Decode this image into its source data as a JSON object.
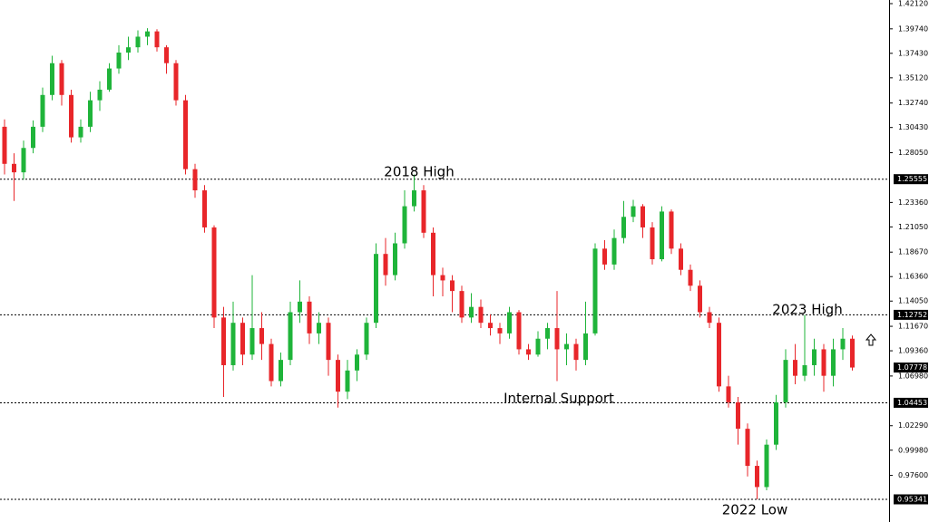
{
  "chart_data": {
    "type": "candlestick",
    "up_color": "#1fb43a",
    "down_color": "#e8262a",
    "ylim": [
      0.93203,
      1.42462
    ],
    "yticks": [
      {
        "value": 1.4212,
        "label": "1.42120"
      },
      {
        "value": 1.3974,
        "label": "1.39740"
      },
      {
        "value": 1.3743,
        "label": "1.37430"
      },
      {
        "value": 1.3512,
        "label": "1.35120"
      },
      {
        "value": 1.3274,
        "label": "1.32740"
      },
      {
        "value": 1.3043,
        "label": "1.30430"
      },
      {
        "value": 1.2805,
        "label": "1.28050"
      },
      {
        "value": 1.2336,
        "label": "1.23360"
      },
      {
        "value": 1.2105,
        "label": "1.21050"
      },
      {
        "value": 1.1867,
        "label": "1.18670"
      },
      {
        "value": 1.1636,
        "label": "1.16360"
      },
      {
        "value": 1.1405,
        "label": "1.14050"
      },
      {
        "value": 1.1167,
        "label": "1.11670"
      },
      {
        "value": 1.0936,
        "label": "1.09360"
      },
      {
        "value": 1.0698,
        "label": "1.06980"
      },
      {
        "value": 1.0229,
        "label": "1.02290"
      },
      {
        "value": 0.9998,
        "label": "0.99980"
      },
      {
        "value": 0.976,
        "label": "0.97600"
      }
    ],
    "levels": [
      1.25555,
      1.12752,
      1.04453,
      0.95341
    ],
    "last_price": 1.07778,
    "annotations": [
      "2018 High",
      "2023 High",
      "Internal Support",
      "2022 Low"
    ],
    "open": [
      1.305,
      1.27,
      1.262,
      1.285,
      1.305,
      1.335,
      1.365,
      1.335,
      1.295,
      1.305,
      1.33,
      1.34,
      1.36,
      1.375,
      1.38,
      1.39,
      1.395,
      1.38,
      1.365,
      1.33,
      1.265,
      1.245,
      1.21,
      1.125,
      1.08,
      1.12,
      1.09,
      1.115,
      1.1,
      1.065,
      1.085,
      1.13,
      1.14,
      1.11,
      1.12,
      1.085,
      1.055,
      1.075,
      1.09,
      1.12,
      1.185,
      1.165,
      1.195,
      1.23,
      1.245,
      1.205,
      1.165,
      1.16,
      1.15,
      1.125,
      1.135,
      1.12,
      1.115,
      1.11,
      1.13,
      1.095,
      1.09,
      1.105,
      1.115,
      1.095,
      1.1,
      1.085,
      1.11,
      1.19,
      1.175,
      1.2,
      1.22,
      1.23,
      1.21,
      1.18,
      1.225,
      1.19,
      1.17,
      1.155,
      1.13,
      1.12,
      1.06,
      1.045,
      1.02,
      0.985,
      0.965,
      1.005,
      1.045,
      1.085,
      1.07,
      1.08,
      1.095,
      1.07,
      1.095,
      1.105
    ],
    "high": [
      1.312,
      1.28,
      1.292,
      1.311,
      1.342,
      1.372,
      1.368,
      1.34,
      1.312,
      1.338,
      1.348,
      1.365,
      1.382,
      1.39,
      1.396,
      1.398,
      1.397,
      1.382,
      1.368,
      1.335,
      1.27,
      1.25,
      1.212,
      1.135,
      1.14,
      1.125,
      1.165,
      1.13,
      1.105,
      1.092,
      1.14,
      1.16,
      1.145,
      1.13,
      1.125,
      1.09,
      1.085,
      1.095,
      1.125,
      1.195,
      1.2,
      1.205,
      1.245,
      1.26,
      1.25,
      1.21,
      1.172,
      1.165,
      1.155,
      1.148,
      1.142,
      1.128,
      1.12,
      1.135,
      1.132,
      1.1,
      1.112,
      1.12,
      1.15,
      1.11,
      1.105,
      1.14,
      1.195,
      1.198,
      1.208,
      1.235,
      1.236,
      1.232,
      1.215,
      1.23,
      1.227,
      1.195,
      1.175,
      1.16,
      1.135,
      1.125,
      1.07,
      1.05,
      1.025,
      0.99,
      1.01,
      1.052,
      1.095,
      1.1,
      1.1275,
      1.105,
      1.1,
      1.105,
      1.115,
      1.108
    ],
    "low": [
      1.26,
      1.235,
      1.255,
      1.28,
      1.3,
      1.33,
      1.325,
      1.29,
      1.29,
      1.3,
      1.32,
      1.338,
      1.355,
      1.368,
      1.375,
      1.382,
      1.376,
      1.355,
      1.325,
      1.26,
      1.238,
      1.205,
      1.115,
      1.05,
      1.075,
      1.08,
      1.085,
      1.085,
      1.06,
      1.06,
      1.08,
      1.12,
      1.1,
      1.1,
      1.07,
      1.04,
      1.048,
      1.065,
      1.085,
      1.115,
      1.155,
      1.16,
      1.19,
      1.225,
      1.2,
      1.145,
      1.145,
      1.13,
      1.12,
      1.12,
      1.115,
      1.108,
      1.1,
      1.105,
      1.09,
      1.085,
      1.088,
      1.095,
      1.065,
      1.08,
      1.075,
      1.08,
      1.108,
      1.17,
      1.17,
      1.195,
      1.215,
      1.2,
      1.175,
      1.178,
      1.185,
      1.165,
      1.15,
      1.125,
      1.115,
      1.055,
      1.04,
      1.005,
      0.975,
      0.9534,
      0.962,
      1.0,
      1.04,
      1.062,
      1.065,
      1.07,
      1.055,
      1.06,
      1.085,
      1.075
    ],
    "close": [
      1.27,
      1.262,
      1.285,
      1.305,
      1.335,
      1.365,
      1.335,
      1.295,
      1.305,
      1.33,
      1.34,
      1.36,
      1.375,
      1.38,
      1.39,
      1.395,
      1.38,
      1.365,
      1.33,
      1.265,
      1.245,
      1.21,
      1.125,
      1.08,
      1.12,
      1.09,
      1.115,
      1.1,
      1.065,
      1.085,
      1.13,
      1.14,
      1.11,
      1.12,
      1.085,
      1.055,
      1.075,
      1.09,
      1.12,
      1.185,
      1.165,
      1.195,
      1.23,
      1.245,
      1.205,
      1.165,
      1.16,
      1.15,
      1.125,
      1.135,
      1.12,
      1.115,
      1.11,
      1.13,
      1.095,
      1.09,
      1.105,
      1.115,
      1.095,
      1.1,
      1.085,
      1.11,
      1.19,
      1.175,
      1.2,
      1.22,
      1.23,
      1.21,
      1.18,
      1.225,
      1.19,
      1.17,
      1.155,
      1.13,
      1.12,
      1.06,
      1.045,
      1.02,
      0.985,
      0.965,
      1.005,
      1.045,
      1.085,
      1.07,
      1.08,
      1.095,
      1.07,
      1.095,
      1.105,
      1.0778
    ]
  }
}
